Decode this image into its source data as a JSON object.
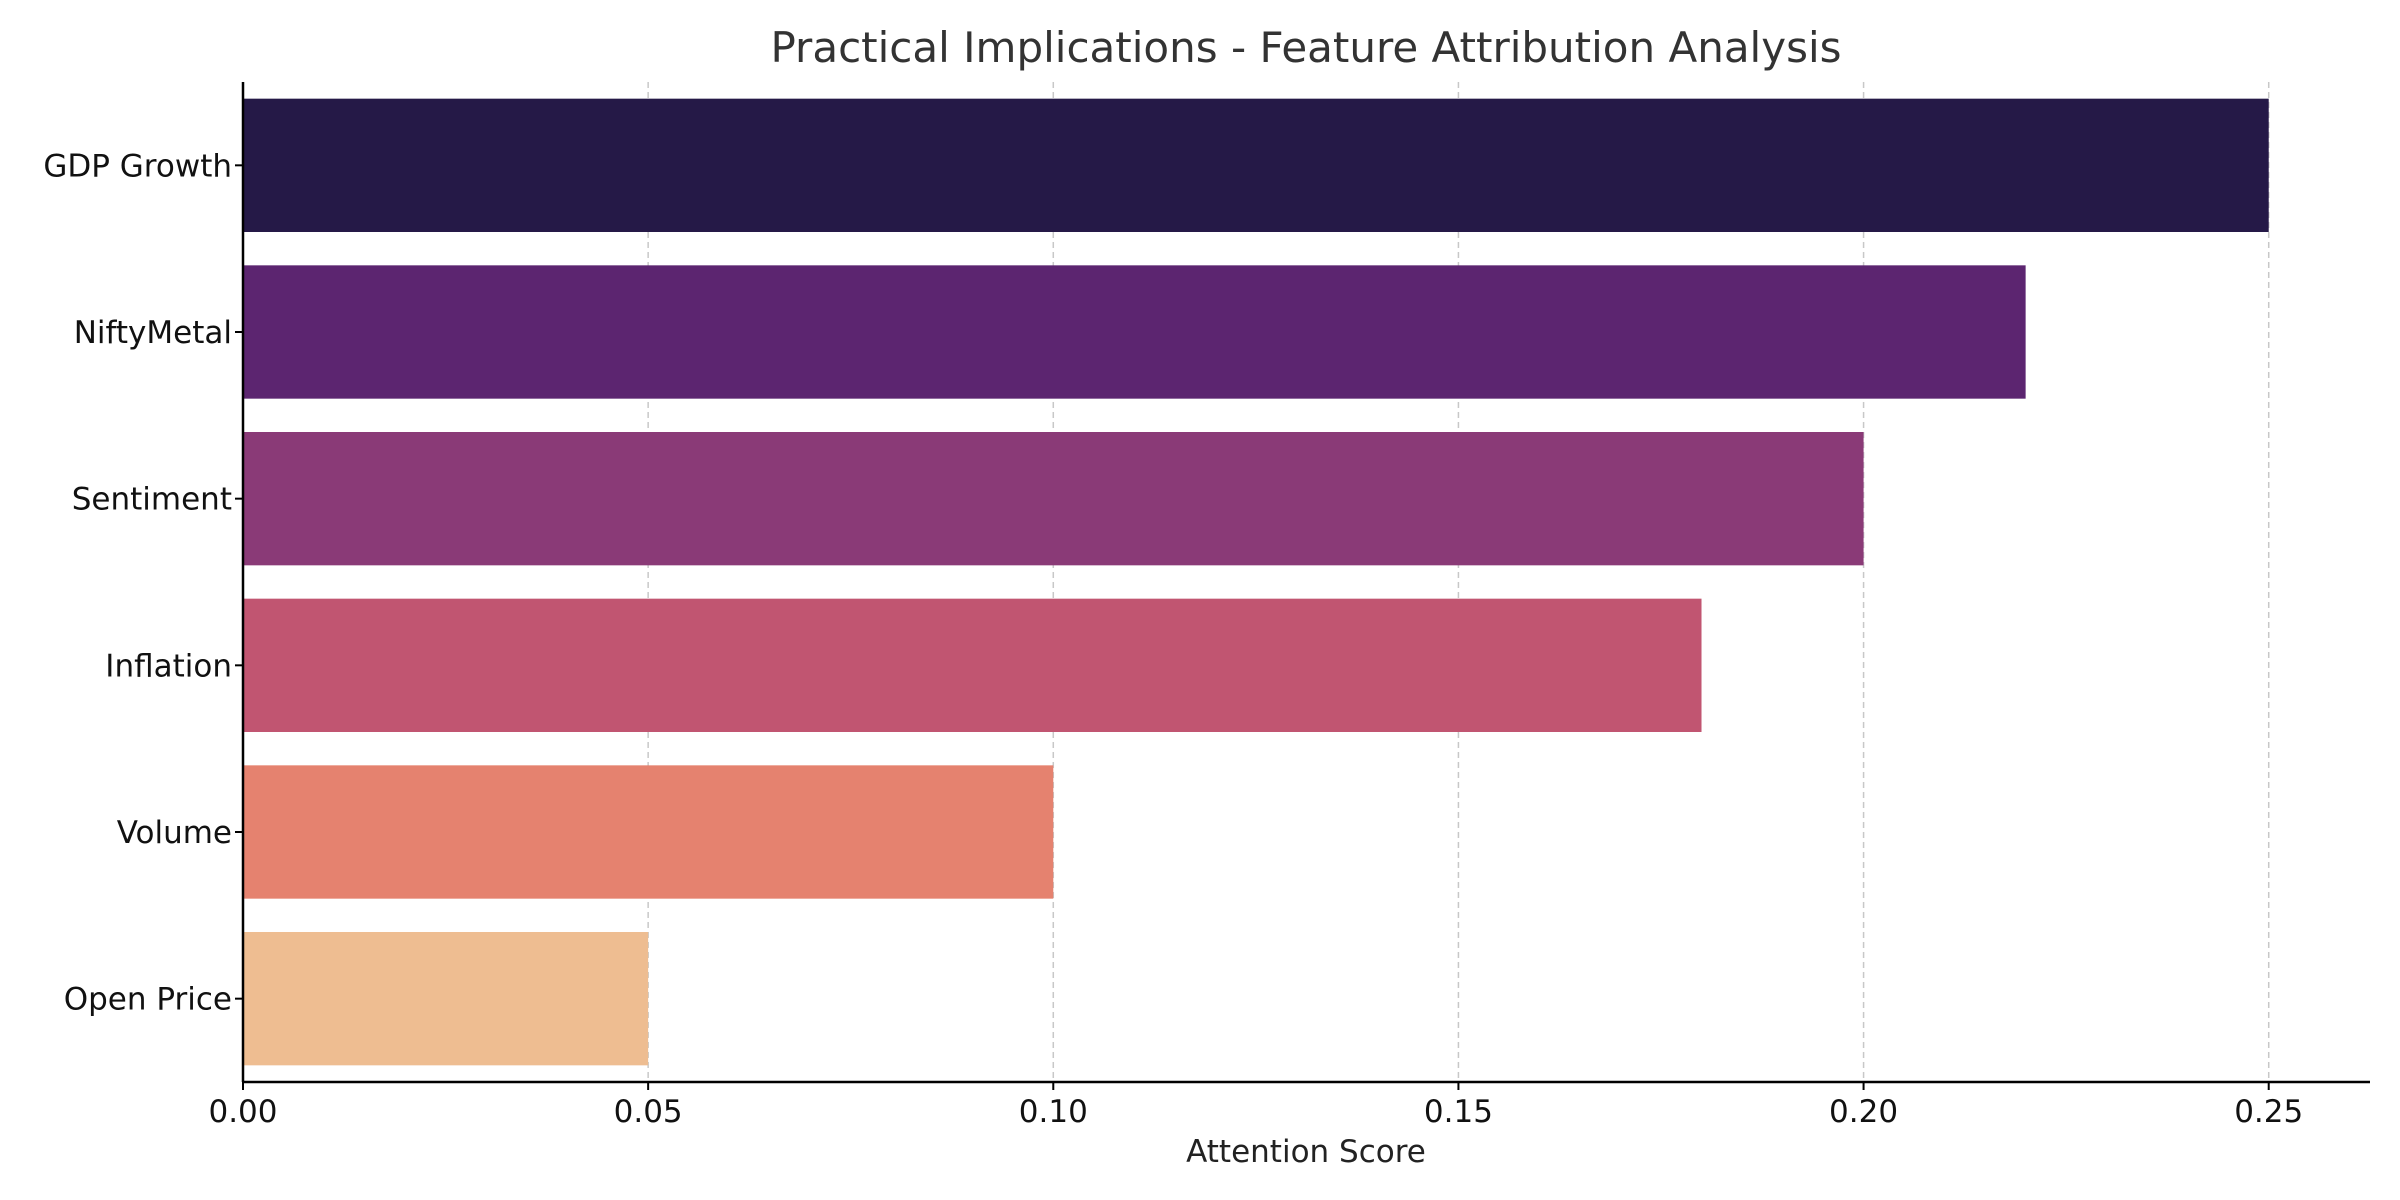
{
  "chart_data": {
    "type": "bar",
    "orientation": "horizontal",
    "title": "Practical Implications - Feature Attribution Analysis",
    "xlabel": "Attention Score",
    "ylabel": "",
    "categories": [
      "GDP Growth",
      "NiftyMetal",
      "Sentiment",
      "Inflation",
      "Volume",
      "Open Price"
    ],
    "values": [
      0.25,
      0.22,
      0.2,
      0.18,
      0.1,
      0.05
    ],
    "colors": [
      "#251947",
      "#5c2570",
      "#8a3a77",
      "#c15571",
      "#e5826f",
      "#eebd91"
    ],
    "xlim": [
      0,
      0.2625
    ],
    "xticks": [
      "0.00",
      "0.05",
      "0.10",
      "0.15",
      "0.20",
      "0.25"
    ],
    "xtick_values": [
      0,
      0.05,
      0.1,
      0.15,
      0.2,
      0.25
    ],
    "grid": "x-major-dashed",
    "legend": "none"
  }
}
